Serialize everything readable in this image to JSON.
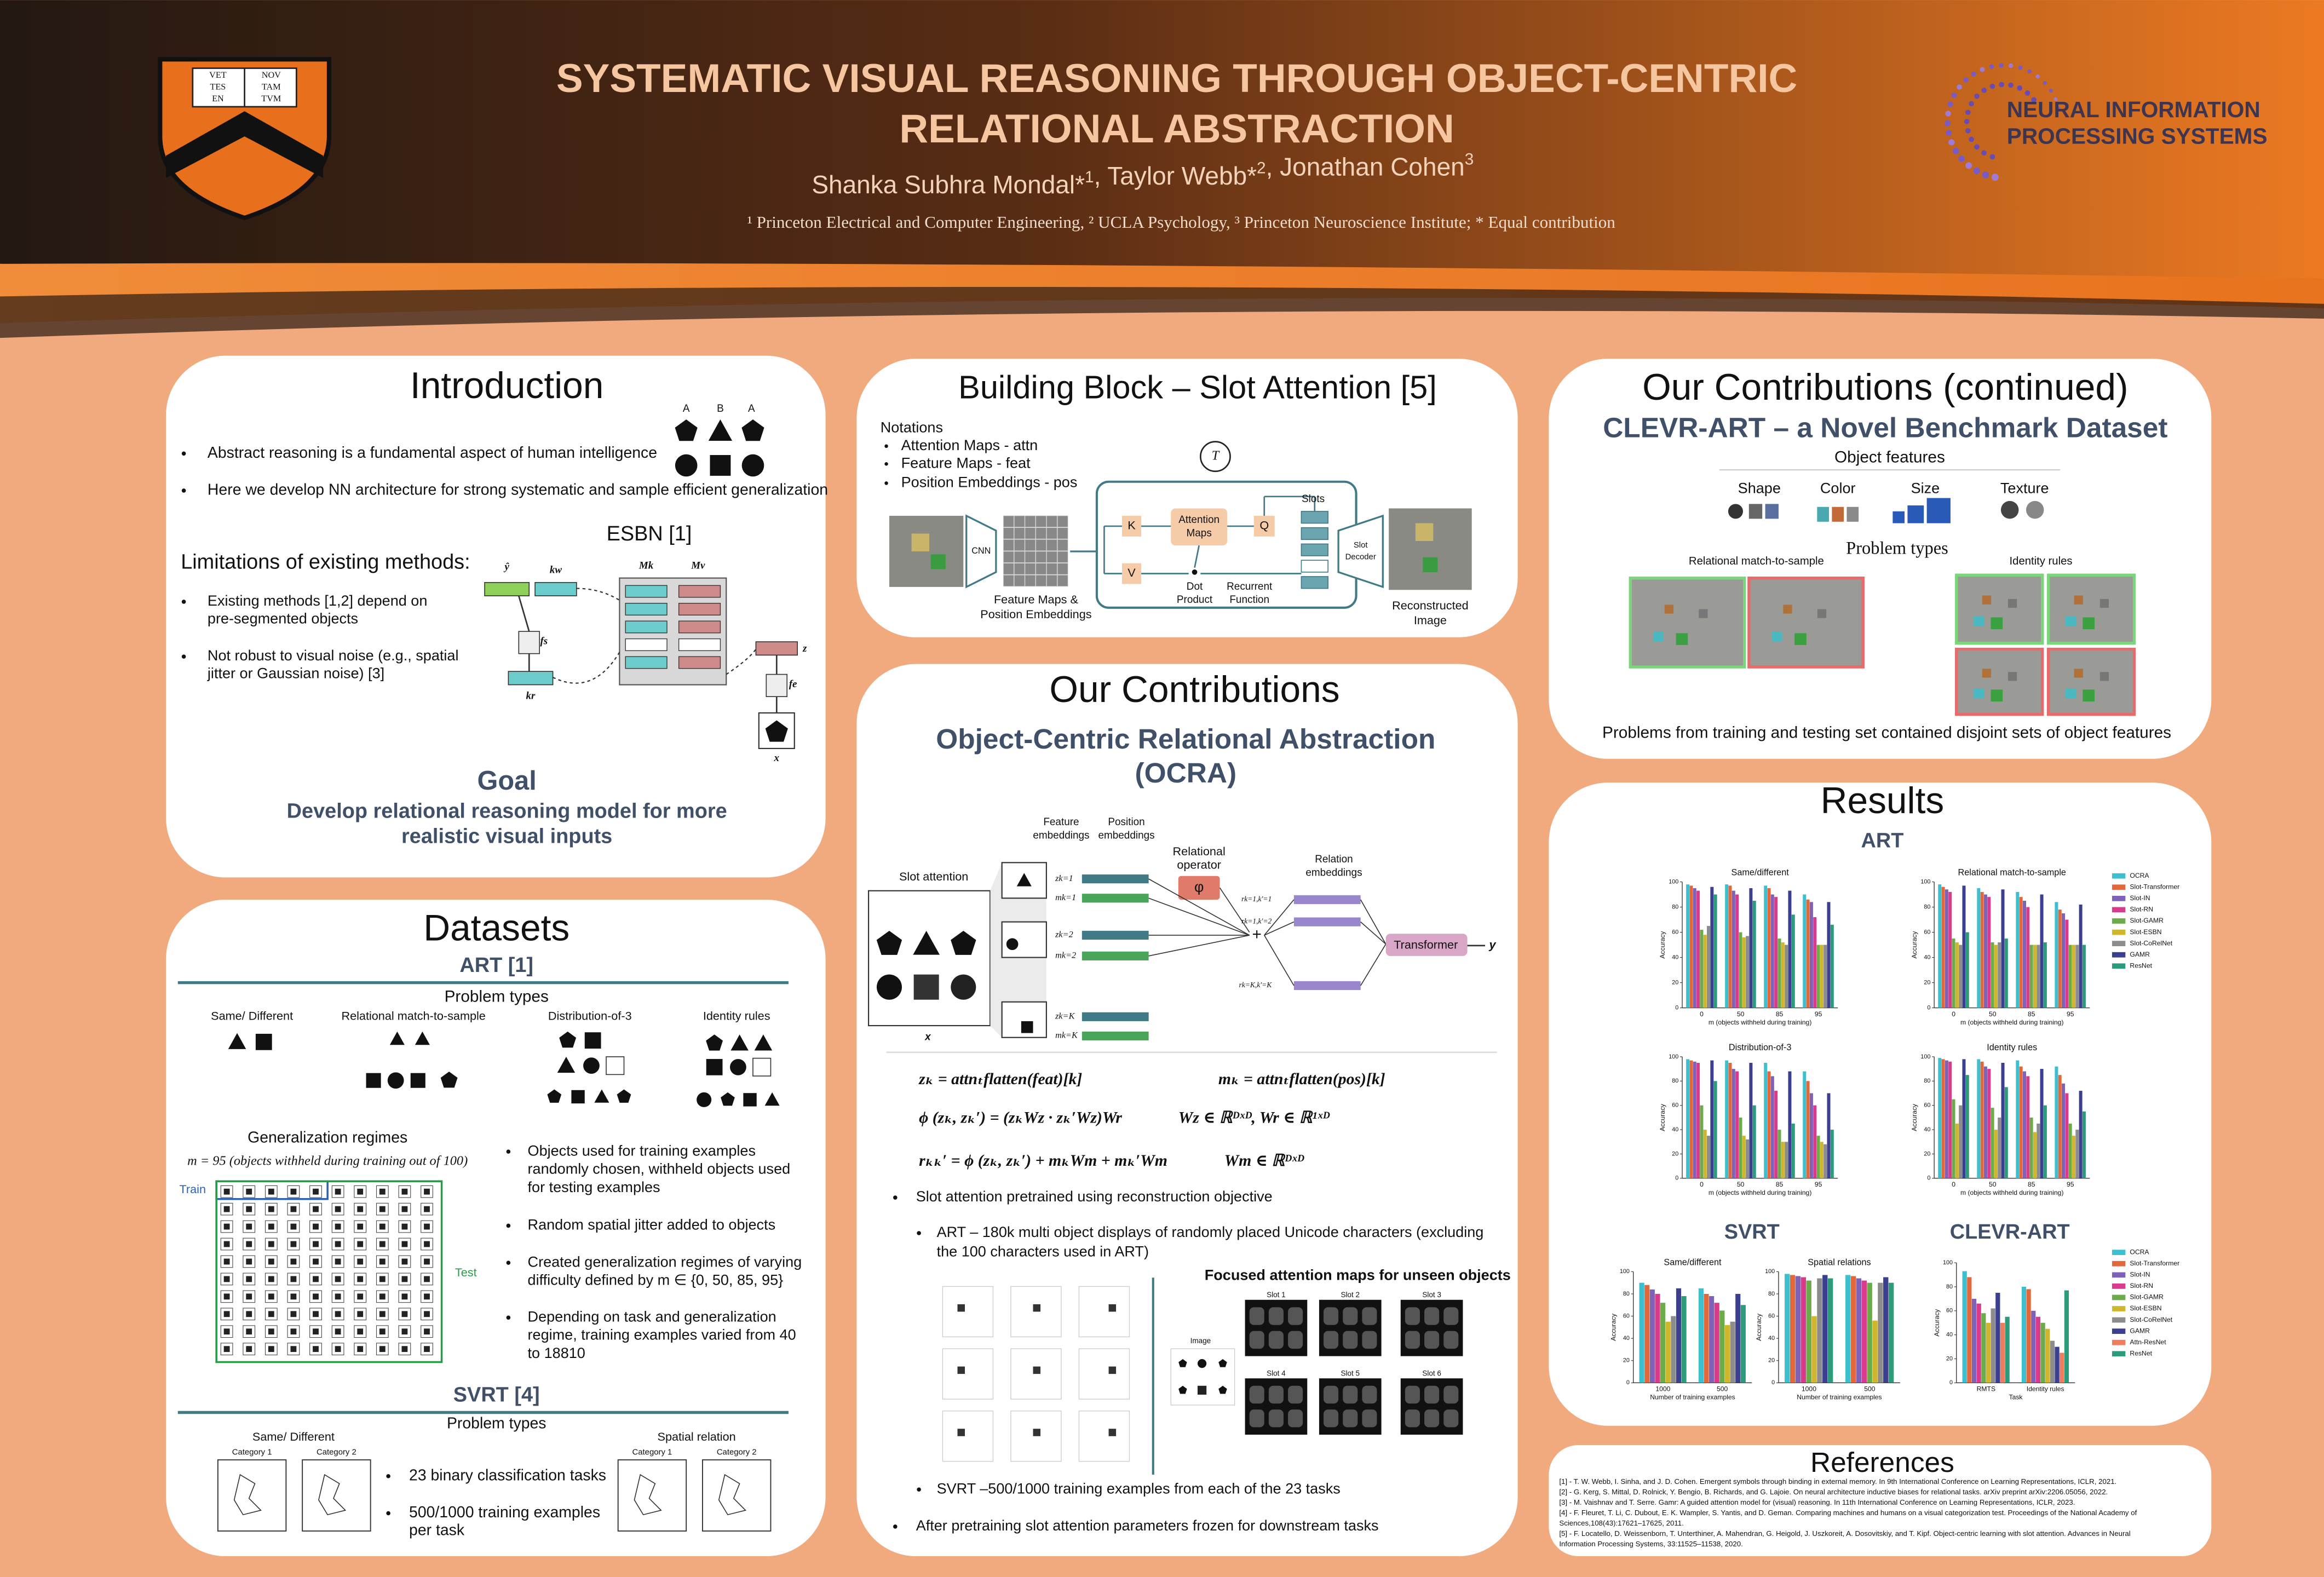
{
  "header": {
    "title": [
      "SYSTEMATIC VISUAL REASONING THROUGH OBJECT-CENTRIC",
      "RELATIONAL ABSTRACTION"
    ],
    "authors": [
      {
        "text": "Shanka Subhra Mondal*",
        "sup": "1"
      },
      {
        "text": ", Taylor Webb*",
        "sup": "2"
      },
      {
        "text": ", Jonathan Cohen",
        "sup": "3"
      }
    ],
    "affiliations": "¹ Princeton Electrical and Computer Engineering, ² UCLA Psychology, ³ Princeton Neuroscience Institute; * Equal contribution",
    "shield": [
      "VET",
      "TES",
      "EN",
      "NOV",
      "TAM",
      "TVM"
    ],
    "logo": [
      "NEURAL INFORMATION",
      "PROCESSING SYSTEMS"
    ]
  },
  "introduction": {
    "title": "Introduction",
    "bullets": [
      "Abstract reasoning is a fundamental aspect of human intelligence",
      "Here we develop NN architecture for strong systematic and sample efficient generalization"
    ],
    "shape_labels": [
      "A",
      "B",
      "A"
    ],
    "limitations_title": "Limitations of existing methods:",
    "limitations": [
      [
        "Existing methods [1,2] depend on",
        "pre-segmented objects"
      ],
      [
        "Not robust to visual noise (e.g., spatial",
        "jitter or Gaussian noise) [3]"
      ]
    ],
    "esbn": {
      "title": "ESBN [1]",
      "labels": [
        "ŷ",
        "kw",
        "Mk",
        "Mv",
        "fs",
        "kr",
        "fe",
        "z",
        "x"
      ]
    },
    "goal_title": "Goal",
    "goal": [
      "Develop relational reasoning model for more",
      "realistic visual inputs"
    ]
  },
  "datasets": {
    "title": "Datasets",
    "art_title": "ART [1]",
    "problem_types": "Problem types",
    "art_types": [
      "Same/ Different",
      "Relational match-to-sample",
      "Distribution-of-3",
      "Identity rules"
    ],
    "regimes_title": "Generalization regimes",
    "regimes_eq": "m = 95 (objects withheld during training out of 100)",
    "train": "Train",
    "test": "Test",
    "art_bullets": [
      [
        "Objects used for training examples",
        "randomly chosen, withheld objects used",
        "for testing examples"
      ],
      [
        "Random spatial jitter added to objects"
      ],
      [
        "Created generalization regimes of varying",
        "difficulty defined by m ∈ {0, 50, 85, 95}"
      ],
      [
        "Depending on task and generalization",
        "regime, training examples varied from 40",
        "to 18810"
      ]
    ],
    "svrt_title": "SVRT [4]",
    "svrt_problem_types": "Problem types",
    "svrt_types": [
      "Same/ Different",
      "Spatial relation"
    ],
    "categories": [
      "Category 1",
      "Category 2"
    ],
    "svrt_bullets": [
      [
        "23 binary classification tasks"
      ],
      [
        "500/1000 training examples",
        "per task"
      ]
    ]
  },
  "slot_attention": {
    "title": "Building Block – Slot Attention [5]",
    "notations_title": "Notations",
    "notations": [
      "Attention Maps - attn",
      "Feature Maps - feat",
      "Position Embeddings - pos"
    ],
    "t": "T",
    "cnn": "CNN",
    "features": [
      "Feature Maps &",
      "Position Embeddings"
    ],
    "k": "K",
    "v": "V",
    "q": "Q",
    "attention": [
      "Attention",
      "Maps"
    ],
    "dot": [
      "Dot",
      "Product"
    ],
    "recurrent": [
      "Recurrent",
      "Function"
    ],
    "slots": "Slots",
    "decoder": [
      "Slot",
      "Decoder"
    ],
    "reconstructed": [
      "Reconstructed",
      "Image"
    ]
  },
  "contributions": {
    "title": "Our Contributions",
    "subtitle": [
      "Object-Centric Relational Abstraction",
      "(OCRA)"
    ],
    "slot_attention": "Slot attention",
    "feature_embeddings": [
      "Feature",
      "embeddings"
    ],
    "position_embeddings": [
      "Position",
      "embeddings"
    ],
    "embedding_labels": [
      "zk=1",
      "mk=1",
      "zk=2",
      "mk=2",
      "zk=K",
      "mk=K"
    ],
    "relational_operator": [
      "Relational",
      "operator"
    ],
    "phi": "φ",
    "plus": "+",
    "relation_embeddings": [
      "Relation",
      "embeddings"
    ],
    "relation_labels": [
      "rk=1,k'=1",
      "rk=1,k'=2",
      "rk=K,k'=K"
    ],
    "transformer": "Transformer",
    "y": "y",
    "x": "x",
    "equations": [
      "zₖ = attnₜflatten(feat)[k]",
      "mₖ = attnₜflatten(pos)[k]",
      "ϕ (zₖ, zₖ′) = (zₖWz · zₖ′Wz)Wr",
      "Wz ∈ ℝᴰˣᴰ, Wr ∈ ℝ¹ˣᴰ",
      "rₖₖ′ = ϕ (zₖ, zₖ′) + mₖWm + mₖ′Wm",
      "Wm ∈ ℝᴰˣᴰ"
    ],
    "bullet1": "Slot attention pretrained using reconstruction objective",
    "sub1": [
      "ART – 180k multi object displays of randomly placed Unicode characters (excluding",
      "the 100 characters used in ART)"
    ],
    "focused_title": "Focused attention maps for unseen objects",
    "image": "Image",
    "slots": [
      "Slot 1",
      "Slot 2",
      "Slot 3",
      "Slot 4",
      "Slot 5",
      "Slot 6"
    ],
    "sub2": "SVRT –500/1000 training examples from each of the 23 tasks",
    "bullet2": "After pretraining slot attention parameters frozen for downstream tasks"
  },
  "clevr": {
    "title": "Our Contributions (continued)",
    "subtitle": "CLEVR-ART – a Novel Benchmark Dataset",
    "features_title": "Object features",
    "features": [
      "Shape",
      "Color",
      "Size",
      "Texture"
    ],
    "problem_types": "Problem types",
    "types": [
      "Relational match-to-sample",
      "Identity rules"
    ],
    "caption": "Problems from training and testing set contained disjoint sets of object features"
  },
  "results": {
    "title": "Results",
    "art": "ART",
    "svrt": "SVRT",
    "clevr": "CLEVR-ART"
  },
  "references": {
    "title": "References",
    "items": [
      [
        "[1] - T. W. Webb, I. Sinha, and J. D. Cohen. Emergent symbols through binding in external memory. In 9th International Conference on Learning Representations, ICLR, 2021."
      ],
      [
        "[2] - G. Kerg, S. Mittal, D. Rolnick, Y. Bengio, B. Richards, and G. Lajoie. On neural architecture inductive biases for relational tasks. arXiv preprint arXiv:2206.05056, 2022."
      ],
      [
        "[3] - M. Vaishnav and T. Serre. Gamr: A guided attention model for (visual) reasoning. In 11th International Conference on Learning Representations, ICLR, 2023."
      ],
      [
        "[4] - F. Fleuret, T. Li, C. Dubout, E. K. Wampler, S. Yantis, and D. Geman. Comparing machines and humans on a visual categorization test. Proceedings of the National Academy of",
        "Sciences,108(43):17621–17625, 2011."
      ],
      [
        "[5] - F. Locatello, D. Weissenborn, T. Unterthiner, A. Mahendran, G. Heigold, J. Uszkoreit, A. Dosovitskiy, and T. Kipf. Object-centric learning with slot attention. Advances in Neural",
        "Information Processing Systems, 33:11525–11538, 2020."
      ]
    ]
  },
  "chart_data": [
    {
      "type": "bar",
      "title": "Same/different",
      "xlabel": "m (objects withheld during training)",
      "ylabel": "Accuracy",
      "categories": [
        "0",
        "50",
        "85",
        "95"
      ],
      "ylim": [
        0,
        100
      ],
      "yticks": [
        0,
        20,
        40,
        60,
        80,
        100
      ],
      "series": [
        {
          "color": "#3cc0cf",
          "values": [
            98,
            98,
            97,
            90
          ]
        },
        {
          "color": "#e2673a",
          "values": [
            97,
            97,
            95,
            86
          ]
        },
        {
          "color": "#7d62b8",
          "values": [
            95,
            93,
            90,
            84
          ]
        },
        {
          "color": "#d93a8c",
          "values": [
            93,
            90,
            88,
            72
          ]
        },
        {
          "color": "#6bab4a",
          "values": [
            62,
            60,
            55,
            50
          ]
        },
        {
          "color": "#d0b62c",
          "values": [
            58,
            56,
            52,
            50
          ]
        },
        {
          "color": "#8c8c8c",
          "values": [
            65,
            57,
            50,
            50
          ]
        },
        {
          "color": "#3b3f8f",
          "values": [
            96,
            95,
            93,
            84
          ]
        },
        {
          "color": "#2b9b7c",
          "values": [
            90,
            85,
            74,
            66
          ]
        }
      ]
    },
    {
      "type": "bar",
      "title": "Relational match-to-sample",
      "xlabel": "m (objects withheld during training)",
      "ylabel": "Accuracy",
      "categories": [
        "0",
        "50",
        "85",
        "95"
      ],
      "ylim": [
        0,
        100
      ],
      "yticks": [
        0,
        20,
        40,
        60,
        80,
        100
      ],
      "legend": "right",
      "series": [
        {
          "name": "OCRA",
          "color": "#3cc0cf",
          "values": [
            98,
            95,
            92,
            84
          ]
        },
        {
          "name": "Slot-Transformer",
          "color": "#e2673a",
          "values": [
            96,
            92,
            88,
            78
          ]
        },
        {
          "name": "Slot-IN",
          "color": "#7d62b8",
          "values": [
            94,
            90,
            85,
            75
          ]
        },
        {
          "name": "Slot-RN",
          "color": "#d93a8c",
          "values": [
            92,
            88,
            80,
            70
          ]
        },
        {
          "name": "Slot-GAMR",
          "color": "#6bab4a",
          "values": [
            55,
            52,
            50,
            50
          ]
        },
        {
          "name": "Slot-ESBN",
          "color": "#d0b62c",
          "values": [
            52,
            50,
            50,
            50
          ]
        },
        {
          "name": "Slot-CoRelNet",
          "color": "#8c8c8c",
          "values": [
            50,
            52,
            50,
            50
          ]
        },
        {
          "name": "GAMR",
          "color": "#3b3f8f",
          "values": [
            97,
            94,
            90,
            82
          ]
        },
        {
          "name": "ResNet",
          "color": "#2b9b7c",
          "values": [
            60,
            55,
            52,
            50
          ]
        }
      ]
    },
    {
      "type": "bar",
      "title": "Distribution-of-3",
      "xlabel": "m (objects withheld during training)",
      "ylabel": "Accuracy",
      "categories": [
        "0",
        "50",
        "85",
        "95"
      ],
      "ylim": [
        0,
        100
      ],
      "yticks": [
        0,
        20,
        40,
        60,
        80,
        100
      ],
      "series": [
        {
          "color": "#3cc0cf",
          "values": [
            98,
            97,
            95,
            88
          ]
        },
        {
          "color": "#e2673a",
          "values": [
            97,
            95,
            88,
            80
          ]
        },
        {
          "color": "#7d62b8",
          "values": [
            96,
            90,
            84,
            70
          ]
        },
        {
          "color": "#d93a8c",
          "values": [
            95,
            88,
            72,
            60
          ]
        },
        {
          "color": "#6bab4a",
          "values": [
            60,
            50,
            40,
            35
          ]
        },
        {
          "color": "#d0b62c",
          "values": [
            40,
            35,
            30,
            30
          ]
        },
        {
          "color": "#8c8c8c",
          "values": [
            35,
            32,
            30,
            28
          ]
        },
        {
          "color": "#3b3f8f",
          "values": [
            97,
            95,
            88,
            70
          ]
        },
        {
          "color": "#2b9b7c",
          "values": [
            80,
            60,
            45,
            40
          ]
        }
      ]
    },
    {
      "type": "bar",
      "title": "Identity rules",
      "xlabel": "m (objects withheld during training)",
      "ylabel": "Accuracy",
      "categories": [
        "0",
        "50",
        "85",
        "95"
      ],
      "ylim": [
        0,
        100
      ],
      "yticks": [
        0,
        20,
        40,
        60,
        80,
        100
      ],
      "series": [
        {
          "color": "#3cc0cf",
          "values": [
            99,
            98,
            97,
            92
          ]
        },
        {
          "color": "#e2673a",
          "values": [
            98,
            96,
            92,
            85
          ]
        },
        {
          "color": "#7d62b8",
          "values": [
            97,
            92,
            88,
            78
          ]
        },
        {
          "color": "#d93a8c",
          "values": [
            96,
            90,
            84,
            70
          ]
        },
        {
          "color": "#6bab4a",
          "values": [
            65,
            58,
            50,
            45
          ]
        },
        {
          "color": "#d0b62c",
          "values": [
            45,
            40,
            38,
            35
          ]
        },
        {
          "color": "#8c8c8c",
          "values": [
            60,
            50,
            45,
            40
          ]
        },
        {
          "color": "#3b3f8f",
          "values": [
            98,
            95,
            90,
            72
          ]
        },
        {
          "color": "#2b9b7c",
          "values": [
            85,
            75,
            60,
            55
          ]
        }
      ]
    },
    {
      "type": "bar",
      "title": "Same/different",
      "xlabel": "Number of training examples",
      "ylabel": "Accuracy",
      "categories": [
        "1000",
        "500"
      ],
      "ylim": [
        0,
        100
      ],
      "yticks": [
        0,
        20,
        40,
        60,
        80,
        100
      ],
      "series": [
        {
          "color": "#3cc0cf",
          "values": [
            90,
            85
          ]
        },
        {
          "color": "#e2673a",
          "values": [
            88,
            80
          ]
        },
        {
          "color": "#7d62b8",
          "values": [
            84,
            78
          ]
        },
        {
          "color": "#d93a8c",
          "values": [
            80,
            72
          ]
        },
        {
          "color": "#6bab4a",
          "values": [
            72,
            65
          ]
        },
        {
          "color": "#d0b62c",
          "values": [
            55,
            52
          ]
        },
        {
          "color": "#8c8c8c",
          "values": [
            60,
            55
          ]
        },
        {
          "color": "#3b3f8f",
          "values": [
            85,
            80
          ]
        },
        {
          "color": "#2b9b7c",
          "values": [
            78,
            70
          ]
        }
      ]
    },
    {
      "type": "bar",
      "title": "Spatial relations",
      "xlabel": "Number of training examples",
      "ylabel": "Accuracy",
      "categories": [
        "1000",
        "500"
      ],
      "ylim": [
        0,
        100
      ],
      "yticks": [
        0,
        20,
        40,
        60,
        80,
        100
      ],
      "series": [
        {
          "color": "#3cc0cf",
          "values": [
            98,
            97
          ]
        },
        {
          "color": "#e2673a",
          "values": [
            97,
            96
          ]
        },
        {
          "color": "#7d62b8",
          "values": [
            96,
            94
          ]
        },
        {
          "color": "#d93a8c",
          "values": [
            95,
            92
          ]
        },
        {
          "color": "#6bab4a",
          "values": [
            92,
            90
          ]
        },
        {
          "color": "#d0b62c",
          "values": [
            60,
            56
          ]
        },
        {
          "color": "#8c8c8c",
          "values": [
            94,
            90
          ]
        },
        {
          "color": "#3b3f8f",
          "values": [
            97,
            95
          ]
        },
        {
          "color": "#2b9b7c",
          "values": [
            94,
            90
          ]
        }
      ]
    },
    {
      "type": "bar",
      "xlabel": "Task",
      "ylabel": "Accuracy",
      "categories": [
        "RMTS",
        "Identity rules"
      ],
      "ylim": [
        0,
        100
      ],
      "yticks": [
        0,
        20,
        40,
        60,
        80,
        100
      ],
      "legend": "right",
      "series": [
        {
          "name": "OCRA",
          "color": "#3cc0cf",
          "values": [
            93,
            80
          ]
        },
        {
          "name": "Slot-Transformer",
          "color": "#e2673a",
          "values": [
            88,
            78
          ]
        },
        {
          "name": "Slot-IN",
          "color": "#7d62b8",
          "values": [
            70,
            60
          ]
        },
        {
          "name": "Slot-RN",
          "color": "#d93a8c",
          "values": [
            66,
            55
          ]
        },
        {
          "name": "Slot-GAMR",
          "color": "#6bab4a",
          "values": [
            58,
            50
          ]
        },
        {
          "name": "Slot-ESBN",
          "color": "#d0b62c",
          "values": [
            50,
            45
          ]
        },
        {
          "name": "Slot-CoRelNet",
          "color": "#8c8c8c",
          "values": [
            62,
            35
          ]
        },
        {
          "name": "GAMR",
          "color": "#3b3f8f",
          "values": [
            75,
            30
          ]
        },
        {
          "name": "Attn-ResNet",
          "color": "#ef7c5c",
          "values": [
            50,
            25
          ]
        },
        {
          "name": "ResNet",
          "color": "#2b9b7c",
          "values": [
            55,
            77
          ]
        }
      ]
    }
  ]
}
